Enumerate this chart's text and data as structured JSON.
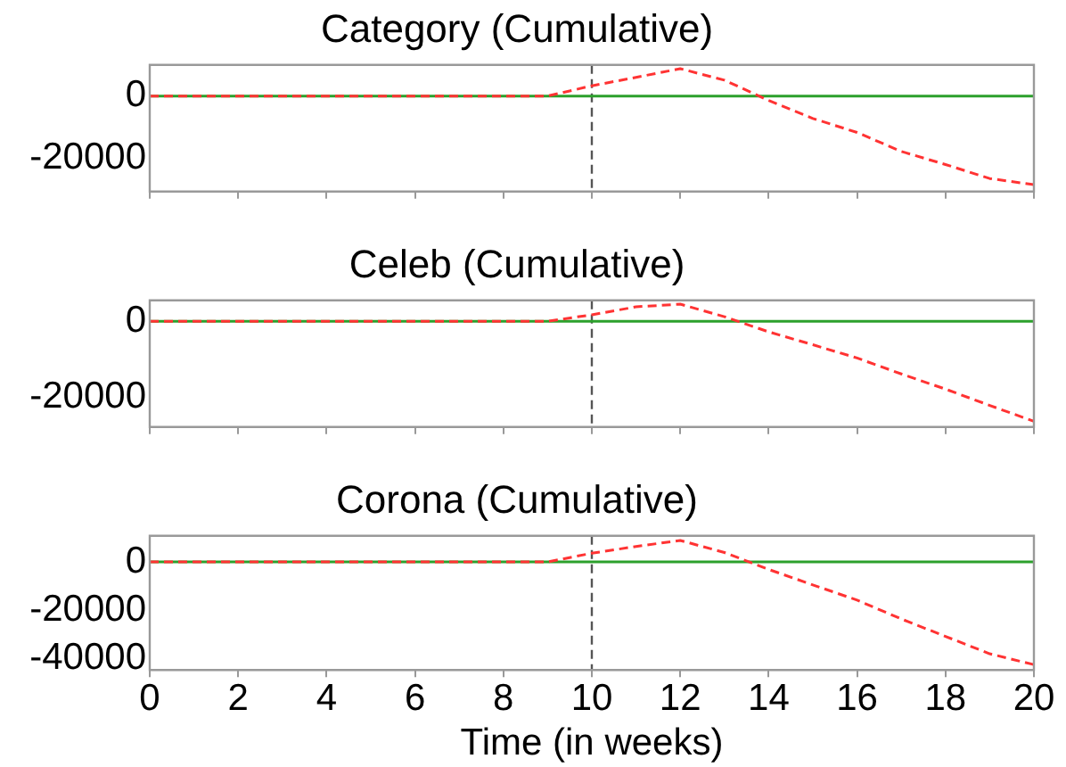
{
  "chart_data": [
    {
      "type": "line",
      "title": "Category (Cumulative)",
      "x": [
        0,
        1,
        2,
        3,
        4,
        5,
        6,
        7,
        8,
        9,
        10,
        11,
        12,
        13,
        14,
        15,
        16,
        17,
        18,
        19,
        20
      ],
      "series": [
        {
          "color": "#2ca02c",
          "line_style": "solid",
          "values": [
            0,
            0,
            0,
            0,
            0,
            0,
            0,
            0,
            0,
            0,
            0,
            0,
            0,
            0,
            0,
            0,
            0,
            0,
            0,
            0,
            0
          ]
        },
        {
          "color": "#ff3333",
          "line_style": "dashed",
          "values": [
            0,
            0,
            0,
            0,
            0,
            0,
            0,
            0,
            0,
            0,
            3300,
            6000,
            8800,
            5100,
            -1400,
            -7200,
            -11700,
            -17800,
            -22000,
            -26500,
            -28500
          ]
        }
      ],
      "xlim": [
        0,
        20
      ],
      "xticks": [
        0,
        2,
        4,
        6,
        8,
        10,
        12,
        14,
        16,
        18,
        20
      ],
      "ylim": [
        -30700,
        10000
      ],
      "yticks": [
        -20000,
        0
      ],
      "tick_labels": "y",
      "ref_lines": [
        {
          "axis": "x",
          "value": 10,
          "color": "#555555",
          "line_style": "dashed"
        }
      ]
    },
    {
      "type": "line",
      "title": "Celeb (Cumulative)",
      "x": [
        0,
        1,
        2,
        3,
        4,
        5,
        6,
        7,
        8,
        9,
        10,
        11,
        12,
        13,
        14,
        15,
        16,
        17,
        18,
        19,
        20
      ],
      "series": [
        {
          "color": "#2ca02c",
          "line_style": "solid",
          "values": [
            0,
            0,
            0,
            0,
            0,
            0,
            0,
            0,
            0,
            0,
            0,
            0,
            0,
            0,
            0,
            0,
            0,
            0,
            0,
            0,
            0
          ]
        },
        {
          "color": "#ff3333",
          "line_style": "dashed",
          "values": [
            0,
            0,
            0,
            0,
            0,
            0,
            0,
            0,
            0,
            0,
            1700,
            3800,
            4500,
            1200,
            -2800,
            -6200,
            -9700,
            -13900,
            -17900,
            -22200,
            -26400
          ]
        }
      ],
      "xlim": [
        0,
        20
      ],
      "xticks": [
        0,
        2,
        4,
        6,
        8,
        10,
        12,
        14,
        16,
        18,
        20
      ],
      "ylim": [
        -27900,
        5500
      ],
      "yticks": [
        -20000,
        0
      ],
      "tick_labels": "y",
      "ref_lines": [
        {
          "axis": "x",
          "value": 10,
          "color": "#555555",
          "line_style": "dashed"
        }
      ]
    },
    {
      "type": "line",
      "title": "Corona (Cumulative)",
      "xlabel": "Time (in weeks)",
      "x": [
        0,
        1,
        2,
        3,
        4,
        5,
        6,
        7,
        8,
        9,
        10,
        11,
        12,
        13,
        14,
        15,
        16,
        17,
        18,
        19,
        20
      ],
      "series": [
        {
          "color": "#2ca02c",
          "line_style": "solid",
          "values": [
            0,
            0,
            0,
            0,
            0,
            0,
            0,
            0,
            0,
            0,
            0,
            0,
            0,
            0,
            0,
            0,
            0,
            0,
            0,
            0,
            0
          ]
        },
        {
          "color": "#ff3333",
          "line_style": "dashed",
          "values": [
            0,
            0,
            0,
            0,
            0,
            0,
            0,
            0,
            0,
            0,
            3600,
            6400,
            8900,
            3900,
            -3100,
            -9500,
            -15800,
            -23600,
            -30800,
            -38000,
            -42500
          ]
        }
      ],
      "xlim": [
        0,
        20
      ],
      "xticks": [
        0,
        2,
        4,
        6,
        8,
        10,
        12,
        14,
        16,
        18,
        20
      ],
      "ylim": [
        -44700,
        10800
      ],
      "yticks": [
        -40000,
        -20000,
        0
      ],
      "ref_lines": [
        {
          "axis": "x",
          "value": 10,
          "color": "#555555",
          "line_style": "dashed"
        }
      ]
    }
  ]
}
